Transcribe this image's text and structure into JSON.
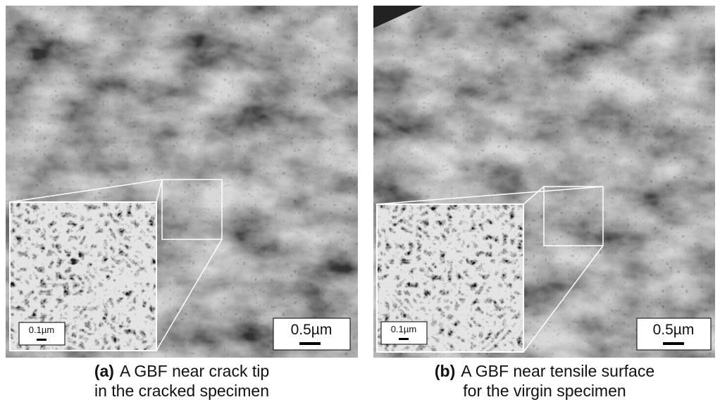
{
  "panels": [
    {
      "label": "(a)",
      "caption": [
        "A GBF near crack tip",
        "in the cracked specimen"
      ],
      "scale_bar": "0.5µm",
      "inset_scale_bar": "0.1µm"
    },
    {
      "label": "(b)",
      "caption": [
        "A GBF near tensile surface",
        "for the virgin specimen"
      ],
      "scale_bar": "0.5µm",
      "inset_scale_bar": "0.1µm"
    }
  ]
}
